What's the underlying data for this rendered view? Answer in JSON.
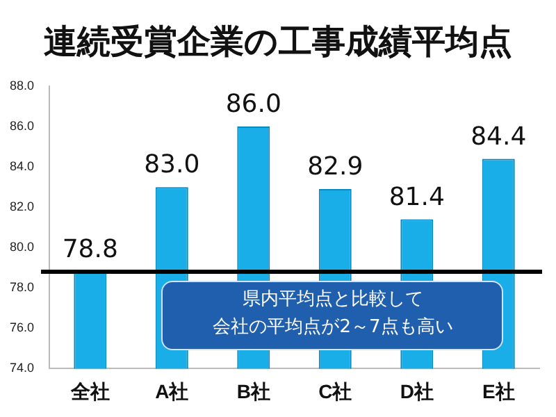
{
  "chart_data": {
    "type": "bar",
    "title": "連続受賞企業の工事成績平均点",
    "categories": [
      "全社",
      "A社",
      "B社",
      "C社",
      "D社",
      "E社"
    ],
    "values": [
      78.8,
      83.0,
      86.0,
      82.9,
      81.4,
      84.4
    ],
    "value_labels": [
      "78.8",
      "83.0",
      "86.0",
      "82.9",
      "81.4",
      "84.4"
    ],
    "color": "#1aaee8",
    "ylim": [
      74,
      88
    ],
    "yticks": [
      {
        "value": 74,
        "label": "74.0"
      },
      {
        "value": 76,
        "label": "76.0"
      },
      {
        "value": 78,
        "label": "78.0"
      },
      {
        "value": 80,
        "label": "80.0"
      },
      {
        "value": 82,
        "label": "82.0"
      },
      {
        "value": 84,
        "label": "84.0"
      },
      {
        "value": 86,
        "label": "86.0"
      },
      {
        "value": 88,
        "label": "88.0"
      }
    ],
    "grid": false,
    "legend": false,
    "ref_lines": [
      {
        "axis": "y",
        "value": 78.8,
        "color": "#000000"
      }
    ],
    "annotations": [
      "県内平均点と比較して",
      "会社の平均点が2～7点も高い"
    ]
  }
}
